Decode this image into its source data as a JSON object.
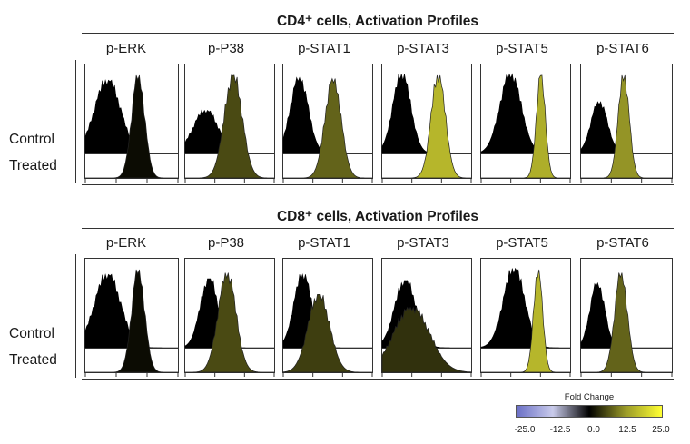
{
  "chart_data": [
    {
      "type": "histogram",
      "title": "CD4⁺ cells, Activation Profiles",
      "row_labels": [
        "Control",
        "Treated"
      ],
      "categories": [
        "p-ERK",
        "p-P38",
        "p-STAT1",
        "p-STAT3",
        "p-STAT5",
        "p-STAT6"
      ],
      "panels": [
        {
          "marker": "p-ERK",
          "control": {
            "center": 0.24,
            "width": 0.14,
            "height": 0.85
          },
          "treated": {
            "center": 0.57,
            "width": 0.07,
            "height": 0.95
          },
          "fold_change": 1.0
        },
        {
          "marker": "p-P38",
          "control": {
            "center": 0.23,
            "width": 0.14,
            "height": 0.5
          },
          "treated": {
            "center": 0.54,
            "width": 0.1,
            "height": 0.95
          },
          "fold_change": 6.0
        },
        {
          "marker": "p-STAT1",
          "control": {
            "center": 0.18,
            "width": 0.1,
            "height": 0.88
          },
          "treated": {
            "center": 0.56,
            "width": 0.09,
            "height": 0.92
          },
          "fold_change": 8.0
        },
        {
          "marker": "p-STAT3",
          "control": {
            "center": 0.22,
            "width": 0.1,
            "height": 0.92
          },
          "treated": {
            "center": 0.63,
            "width": 0.08,
            "height": 0.95
          },
          "fold_change": 16.0
        },
        {
          "marker": "p-STAT5",
          "control": {
            "center": 0.33,
            "width": 0.12,
            "height": 0.92
          },
          "treated": {
            "center": 0.67,
            "width": 0.05,
            "height": 0.95
          },
          "fold_change": 15.0
        },
        {
          "marker": "p-STAT6",
          "control": {
            "center": 0.2,
            "width": 0.09,
            "height": 0.6
          },
          "treated": {
            "center": 0.47,
            "width": 0.06,
            "height": 0.95
          },
          "fold_change": 12.0
        }
      ]
    },
    {
      "type": "histogram",
      "title": "CD8⁺ cells, Activation Profiles",
      "row_labels": [
        "Control",
        "Treated"
      ],
      "categories": [
        "p-ERK",
        "p-P38",
        "p-STAT1",
        "p-STAT3",
        "p-STAT5",
        "p-STAT6"
      ],
      "panels": [
        {
          "marker": "p-ERK",
          "control": {
            "center": 0.24,
            "width": 0.14,
            "height": 0.85
          },
          "treated": {
            "center": 0.57,
            "width": 0.07,
            "height": 0.95
          },
          "fold_change": 1.0
        },
        {
          "marker": "p-P38",
          "control": {
            "center": 0.27,
            "width": 0.1,
            "height": 0.8
          },
          "treated": {
            "center": 0.47,
            "width": 0.1,
            "height": 0.92
          },
          "fold_change": 6.0
        },
        {
          "marker": "p-STAT1",
          "control": {
            "center": 0.22,
            "width": 0.1,
            "height": 0.85
          },
          "treated": {
            "center": 0.4,
            "width": 0.12,
            "height": 0.72
          },
          "fold_change": 5.0
        },
        {
          "marker": "p-STAT3",
          "control": {
            "center": 0.26,
            "width": 0.12,
            "height": 0.78
          },
          "treated": {
            "center": 0.33,
            "width": 0.2,
            "height": 0.6
          },
          "fold_change": 4.0
        },
        {
          "marker": "p-STAT5",
          "control": {
            "center": 0.37,
            "width": 0.12,
            "height": 0.92
          },
          "treated": {
            "center": 0.64,
            "width": 0.05,
            "height": 0.95
          },
          "fold_change": 16.0
        },
        {
          "marker": "p-STAT6",
          "control": {
            "center": 0.18,
            "width": 0.08,
            "height": 0.75
          },
          "treated": {
            "center": 0.44,
            "width": 0.07,
            "height": 0.92
          },
          "fold_change": 8.0
        }
      ]
    }
  ],
  "colorbar": {
    "title": "Fold Change",
    "ticks": [
      "-25.0",
      "-12.5",
      "0.0",
      "12.5",
      "25.0"
    ],
    "range": [
      -25.0,
      25.0
    ],
    "colors": [
      "#6a6fc6",
      "#c9cbeb",
      "#000000",
      "#9a9a28",
      "#ffff33"
    ]
  }
}
